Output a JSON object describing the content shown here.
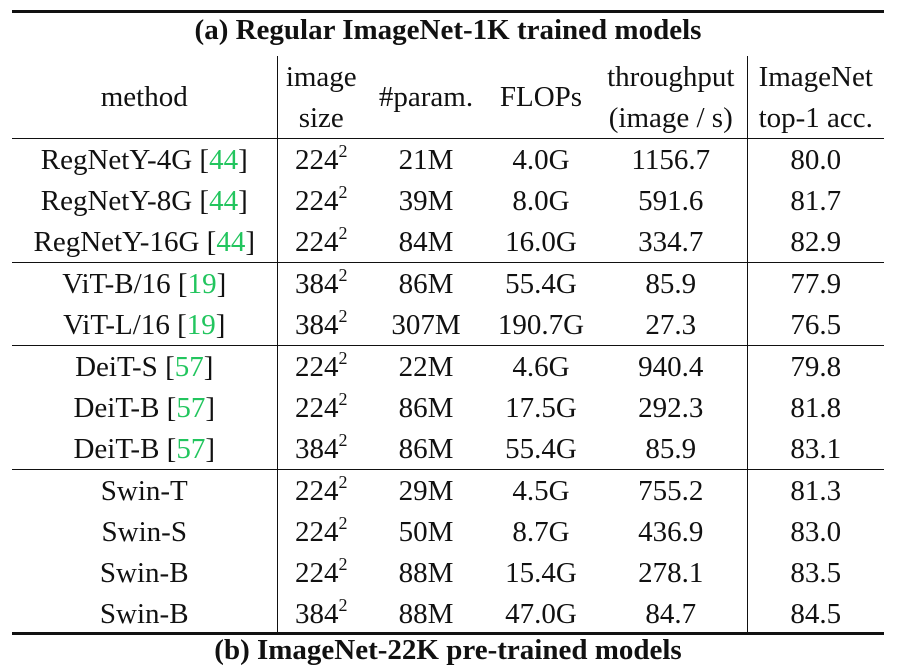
{
  "caption": "(a) Regular ImageNet-1K trained models",
  "next_caption": "(b) ImageNet-22K pre-trained models",
  "ref_color": "#22c55e",
  "header": {
    "method": "method",
    "image_size_1": "image",
    "image_size_2": "size",
    "params": "#param.",
    "flops": "FLOPs",
    "throughput_1": "throughput",
    "throughput_2": "(image / s)",
    "acc_1": "ImageNet",
    "acc_2": "top-1 acc."
  },
  "groups": [
    {
      "rows": [
        {
          "method": "RegNetY-4G",
          "ref": "44",
          "size": "224",
          "params": "21M",
          "flops": "4.0G",
          "throughput": "1156.7",
          "acc": "80.0"
        },
        {
          "method": "RegNetY-8G",
          "ref": "44",
          "size": "224",
          "params": "39M",
          "flops": "8.0G",
          "throughput": "591.6",
          "acc": "81.7"
        },
        {
          "method": "RegNetY-16G",
          "ref": "44",
          "size": "224",
          "params": "84M",
          "flops": "16.0G",
          "throughput": "334.7",
          "acc": "82.9"
        }
      ]
    },
    {
      "rows": [
        {
          "method": "ViT-B/16",
          "ref": "19",
          "size": "384",
          "params": "86M",
          "flops": "55.4G",
          "throughput": "85.9",
          "acc": "77.9"
        },
        {
          "method": "ViT-L/16",
          "ref": "19",
          "size": "384",
          "params": "307M",
          "flops": "190.7G",
          "throughput": "27.3",
          "acc": "76.5"
        }
      ]
    },
    {
      "rows": [
        {
          "method": "DeiT-S",
          "ref": "57",
          "size": "224",
          "params": "22M",
          "flops": "4.6G",
          "throughput": "940.4",
          "acc": "79.8"
        },
        {
          "method": "DeiT-B",
          "ref": "57",
          "size": "224",
          "params": "86M",
          "flops": "17.5G",
          "throughput": "292.3",
          "acc": "81.8"
        },
        {
          "method": "DeiT-B",
          "ref": "57",
          "size": "384",
          "params": "86M",
          "flops": "55.4G",
          "throughput": "85.9",
          "acc": "83.1"
        }
      ]
    },
    {
      "rows": [
        {
          "method": "Swin-T",
          "ref": "",
          "size": "224",
          "params": "29M",
          "flops": "4.5G",
          "throughput": "755.2",
          "acc": "81.3"
        },
        {
          "method": "Swin-S",
          "ref": "",
          "size": "224",
          "params": "50M",
          "flops": "8.7G",
          "throughput": "436.9",
          "acc": "83.0"
        },
        {
          "method": "Swin-B",
          "ref": "",
          "size": "224",
          "params": "88M",
          "flops": "15.4G",
          "throughput": "278.1",
          "acc": "83.5"
        },
        {
          "method": "Swin-B",
          "ref": "",
          "size": "384",
          "params": "88M",
          "flops": "47.0G",
          "throughput": "84.7",
          "acc": "84.5"
        }
      ]
    }
  ],
  "size_exponent": "2"
}
